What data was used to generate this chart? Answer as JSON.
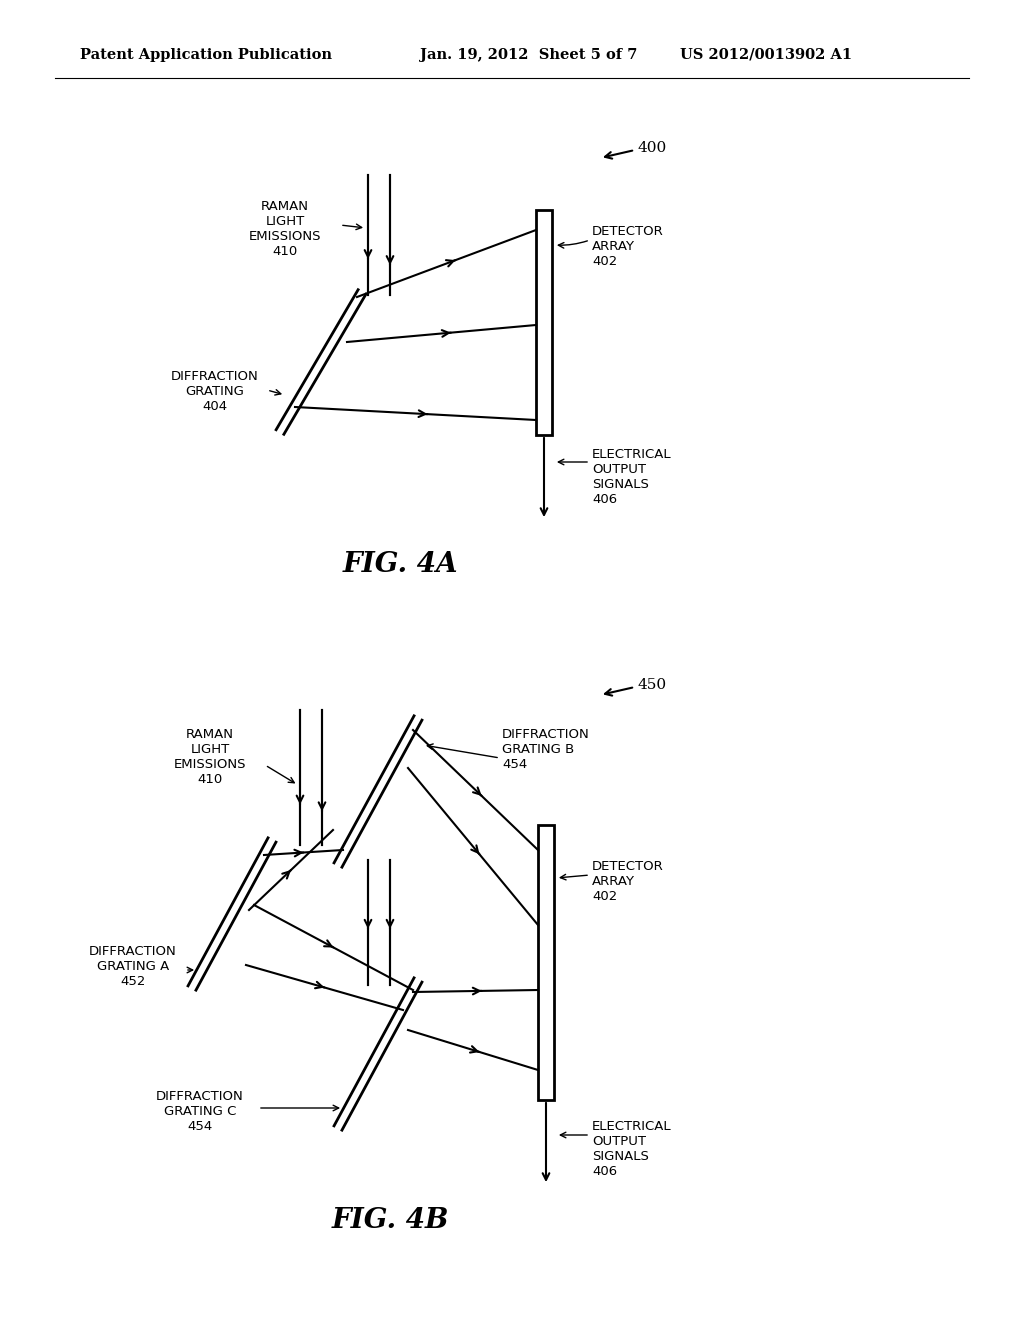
{
  "bg_color": "#ffffff",
  "text_color": "#000000",
  "line_color": "#000000",
  "header_left": "Patent Application Publication",
  "header_mid": "Jan. 19, 2012  Sheet 5 of 7",
  "header_right": "US 2012/0013902 A1",
  "fig4a_ref": "400",
  "fig4b_ref": "450",
  "fig4a_caption": "FIG. 4A",
  "fig4b_caption": "FIG. 4B"
}
